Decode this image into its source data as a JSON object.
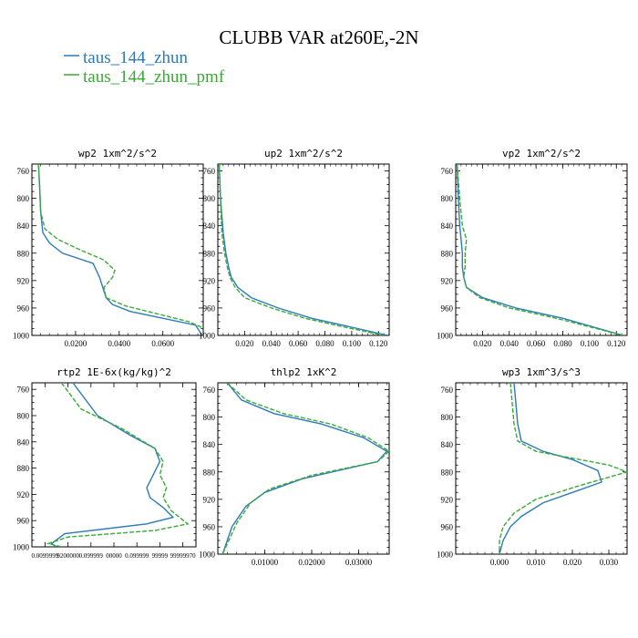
{
  "figure": {
    "title": "CLUBB VAR at260E,-2N",
    "legend": [
      {
        "label": "taus_144_zhun",
        "color": "#2b7bba"
      },
      {
        "label": "taus_144_zhun_pmf",
        "color": "#3aaa35"
      }
    ]
  },
  "chart_data": [
    {
      "type": "line",
      "title": "wp2  1xm^2/s^2",
      "ylim": [
        1000,
        750
      ],
      "yticks": [
        760,
        800,
        840,
        880,
        920,
        960,
        1000
      ],
      "xlim": [
        0.0,
        0.0785
      ],
      "xticks": [
        0.02,
        0.04,
        0.06
      ],
      "xticklabels": [
        "0.0200",
        "0.0400",
        "0.0600"
      ],
      "series": [
        {
          "name": "taus_144_zhun",
          "x": [
            0.003,
            0.0035,
            0.004,
            0.005,
            0.008,
            0.014,
            0.028,
            0.031,
            0.033,
            0.034,
            0.037,
            0.045,
            0.075,
            0.078
          ],
          "y": [
            750,
            780,
            820,
            850,
            865,
            880,
            895,
            915,
            935,
            945,
            955,
            965,
            985,
            1000
          ]
        },
        {
          "name": "taus_144_zhun_pmf",
          "x": [
            0.003,
            0.0035,
            0.004,
            0.006,
            0.012,
            0.022,
            0.033,
            0.038,
            0.037,
            0.033,
            0.034,
            0.043,
            0.072,
            0.079
          ],
          "y": [
            750,
            780,
            820,
            845,
            860,
            875,
            890,
            905,
            915,
            930,
            945,
            957,
            980,
            990
          ]
        }
      ]
    },
    {
      "type": "line",
      "title": "up2  1xm^2/s^2",
      "ylim": [
        1000,
        750
      ],
      "yticks": [
        760,
        800,
        840,
        880,
        920,
        960,
        1000
      ],
      "xlim": [
        0.0,
        0.128
      ],
      "xticks": [
        0.02,
        0.04,
        0.06,
        0.08,
        0.1,
        0.12
      ],
      "xticklabels": [
        "0.020",
        "0.040",
        "0.060",
        "0.080",
        "0.100",
        "0.120"
      ],
      "series": [
        {
          "name": "taus_144_zhun",
          "x": [
            0.001,
            0.002,
            0.004,
            0.006,
            0.008,
            0.01,
            0.015,
            0.025,
            0.045,
            0.07,
            0.1,
            0.127
          ],
          "y": [
            750,
            800,
            850,
            880,
            900,
            915,
            930,
            945,
            960,
            975,
            988,
            1000
          ]
        },
        {
          "name": "taus_144_zhun_pmf",
          "x": [
            0.001,
            0.002,
            0.003,
            0.005,
            0.007,
            0.009,
            0.013,
            0.02,
            0.04,
            0.065,
            0.095,
            0.124
          ],
          "y": [
            750,
            800,
            850,
            880,
            900,
            915,
            930,
            945,
            960,
            975,
            988,
            1000
          ]
        }
      ]
    },
    {
      "type": "line",
      "title": "vp2  1xm^2/s^2",
      "ylim": [
        1000,
        750
      ],
      "yticks": [
        760,
        800,
        840,
        880,
        920,
        960,
        1000
      ],
      "xlim": [
        0.0,
        0.128
      ],
      "xticks": [
        0.02,
        0.04,
        0.06,
        0.08,
        0.1,
        0.12
      ],
      "xticklabels": [
        "0.020",
        "0.040",
        "0.060",
        "0.080",
        "0.100",
        "0.120"
      ],
      "series": [
        {
          "name": "taus_144_zhun",
          "x": [
            0.001,
            0.002,
            0.003,
            0.004,
            0.005,
            0.005,
            0.006,
            0.008,
            0.02,
            0.045,
            0.08,
            0.125
          ],
          "y": [
            750,
            800,
            840,
            860,
            880,
            900,
            915,
            930,
            945,
            960,
            975,
            1000
          ]
        },
        {
          "name": "taus_144_zhun_pmf",
          "x": [
            0.001,
            0.003,
            0.005,
            0.008,
            0.007,
            0.007,
            0.006,
            0.008,
            0.018,
            0.04,
            0.075,
            0.125
          ],
          "y": [
            750,
            800,
            840,
            860,
            880,
            900,
            915,
            930,
            945,
            960,
            975,
            1000
          ]
        }
      ]
    },
    {
      "type": "line",
      "title": "rtp2  1E-6x(kg/kg)^2",
      "ylim": [
        1000,
        750
      ],
      "yticks": [
        760,
        800,
        840,
        880,
        920,
        960,
        1000
      ],
      "xlim": [
        0.0,
        1.0
      ],
      "xticklabels": [
        "0.0099999",
        "9200000",
        "0.099999",
        "00000",
        "0.099999",
        "99999",
        "99999970"
      ],
      "xtickpos": [
        0.08,
        0.22,
        0.36,
        0.5,
        0.64,
        0.78,
        0.92
      ],
      "series": [
        {
          "name": "taus_144_zhun",
          "x": [
            0.25,
            0.4,
            0.6,
            0.75,
            0.78,
            0.74,
            0.7,
            0.72,
            0.8,
            0.86,
            0.7,
            0.2,
            0.12,
            0.15
          ],
          "y": [
            750,
            800,
            830,
            850,
            870,
            890,
            910,
            925,
            940,
            955,
            965,
            980,
            995,
            1000
          ]
        },
        {
          "name": "taus_144_zhun_pmf",
          "x": [
            0.18,
            0.3,
            0.55,
            0.75,
            0.8,
            0.78,
            0.82,
            0.8,
            0.85,
            0.95,
            0.75,
            0.22,
            0.1,
            0.18
          ],
          "y": [
            750,
            790,
            820,
            850,
            870,
            890,
            910,
            925,
            945,
            965,
            975,
            985,
            995,
            1000
          ]
        }
      ]
    },
    {
      "type": "line",
      "title": "thlp2  1xK^2",
      "ylim": [
        1000,
        750
      ],
      "yticks": [
        760,
        800,
        840,
        880,
        920,
        960,
        1000
      ],
      "xlim": [
        0.0,
        0.0365
      ],
      "xticks": [
        0.01,
        0.02,
        0.03
      ],
      "xticklabels": [
        "0.01000",
        "0.02000",
        "0.03000"
      ],
      "series": [
        {
          "name": "taus_144_zhun",
          "x": [
            0.002,
            0.005,
            0.012,
            0.022,
            0.031,
            0.036,
            0.034,
            0.018,
            0.01,
            0.006,
            0.003,
            0.001
          ],
          "y": [
            750,
            775,
            795,
            810,
            830,
            850,
            865,
            890,
            910,
            930,
            960,
            1000
          ]
        },
        {
          "name": "taus_144_zhun_pmf",
          "x": [
            0.002,
            0.006,
            0.014,
            0.024,
            0.032,
            0.0365,
            0.034,
            0.02,
            0.011,
            0.007,
            0.004,
            0.001
          ],
          "y": [
            750,
            775,
            795,
            810,
            830,
            850,
            865,
            885,
            905,
            925,
            955,
            1000
          ]
        }
      ]
    },
    {
      "type": "line",
      "title": "wp3  1xm^3/s^3",
      "ylim": [
        1000,
        750
      ],
      "yticks": [
        760,
        800,
        840,
        880,
        920,
        960,
        1000
      ],
      "xlim": [
        -0.012,
        0.035
      ],
      "xticks": [
        0.0,
        0.01,
        0.02,
        0.03
      ],
      "xticklabels": [
        "0.000",
        "0.010",
        "0.020",
        "0.030"
      ],
      "series": [
        {
          "name": "taus_144_zhun",
          "x": [
            0.004,
            0.0045,
            0.005,
            0.006,
            0.012,
            0.02,
            0.027,
            0.028,
            0.02,
            0.012,
            0.006,
            0.003,
            0.001,
            0.0
          ],
          "y": [
            750,
            780,
            810,
            835,
            850,
            862,
            878,
            895,
            910,
            925,
            945,
            960,
            980,
            1000
          ]
        },
        {
          "name": "taus_144_zhun_pmf",
          "x": [
            0.003,
            0.0035,
            0.004,
            0.005,
            0.01,
            0.022,
            0.03,
            0.035,
            0.022,
            0.01,
            0.004,
            0.001,
            0.0,
            0.0
          ],
          "y": [
            750,
            780,
            810,
            835,
            850,
            862,
            870,
            880,
            900,
            920,
            940,
            960,
            980,
            1000
          ]
        }
      ]
    }
  ]
}
